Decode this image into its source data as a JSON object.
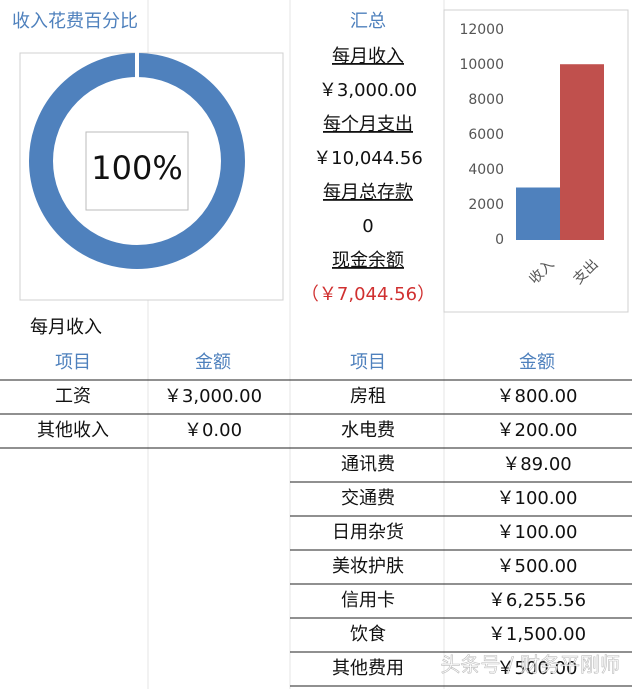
{
  "chart_data": [
    {
      "type": "pie",
      "title": "收入花费百分比",
      "values": [
        100
      ],
      "value_labels": [
        "100%"
      ],
      "color": "#4f81bd"
    },
    {
      "type": "bar",
      "categories": [
        "收入",
        "支出"
      ],
      "values": [
        3000,
        10044.56
      ],
      "colors": [
        "#4f81bd",
        "#c0504d"
      ],
      "ylim": [
        0,
        12000
      ],
      "yticks": [
        0,
        2000,
        4000,
        6000,
        8000,
        10000,
        12000
      ]
    }
  ],
  "summary": {
    "title": "汇总",
    "items": [
      {
        "label": "每月收入",
        "value": "￥3,000.00"
      },
      {
        "label": "每个月支出",
        "value": "￥10,044.56"
      },
      {
        "label": "每月总存款",
        "value": "0"
      },
      {
        "label": "现金余额",
        "value": "（￥7,044.56）"
      }
    ]
  },
  "income": {
    "title": "每月收入",
    "headers": [
      "项目",
      "金额"
    ],
    "rows": [
      [
        "工资",
        "￥3,000.00"
      ],
      [
        "其他收入",
        "￥0.00"
      ]
    ]
  },
  "expense": {
    "headers": [
      "项目",
      "金额"
    ],
    "rows": [
      [
        "房租",
        "￥800.00"
      ],
      [
        "水电费",
        "￥200.00"
      ],
      [
        "通讯费",
        "￥89.00"
      ],
      [
        "交通费",
        "￥100.00"
      ],
      [
        "日用杂货",
        "￥100.00"
      ],
      [
        "美妆护肤",
        "￥500.00"
      ],
      [
        "信用卡",
        "￥6,255.56"
      ],
      [
        "饮食",
        "￥1,500.00"
      ],
      [
        "其他费用",
        "￥500.00"
      ]
    ]
  },
  "watermark": "头条号 / 财务平刚师"
}
